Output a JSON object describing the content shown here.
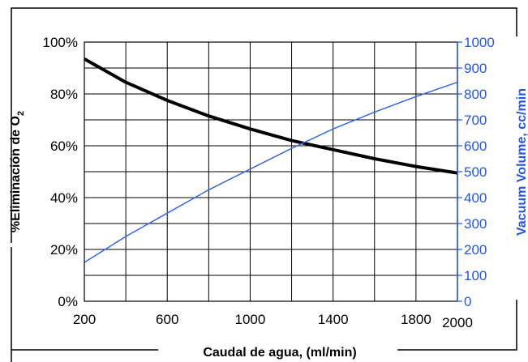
{
  "chart_data": {
    "type": "line",
    "xlabel": "Caudal de agua, (ml/min)",
    "ylabel_left_main": "%Eliminación de O",
    "ylabel_left_sub": "2",
    "ylabel_right": "Vacuum Volume, cc/min",
    "x_ticks": [
      "200",
      "600",
      "1000",
      "1400",
      "1800",
      "2000"
    ],
    "x_tick_values": [
      200,
      600,
      1000,
      1400,
      1800,
      2000
    ],
    "y_left_ticks": [
      "0%",
      "20%",
      "40%",
      "60%",
      "80%",
      "100%"
    ],
    "y_right_ticks": [
      "0",
      "100",
      "200",
      "300",
      "400",
      "500",
      "600",
      "700",
      "800",
      "900",
      "1000"
    ],
    "xlim": [
      200,
      2000
    ],
    "ylim_left": [
      0,
      100
    ],
    "ylim_right": [
      0,
      1000
    ],
    "grid": true,
    "colors": {
      "left_axis": "#000000",
      "right_axis": "#2255ee",
      "removal_series": "#000000",
      "vacuum_series": "#3366ee"
    },
    "series": [
      {
        "axis": "left",
        "x": [
          200,
          400,
          600,
          800,
          1000,
          1200,
          1400,
          1600,
          1800,
          2000
        ],
        "values": [
          93.5,
          84.5,
          77.5,
          71.5,
          66.5,
          62,
          58.5,
          55,
          52,
          49.5
        ]
      },
      {
        "axis": "right",
        "x": [
          200,
          400,
          600,
          800,
          1000,
          1200,
          1400,
          1600,
          1800,
          2000
        ],
        "values": [
          150,
          250,
          340,
          430,
          510,
          590,
          665,
          730,
          790,
          845
        ]
      }
    ]
  }
}
